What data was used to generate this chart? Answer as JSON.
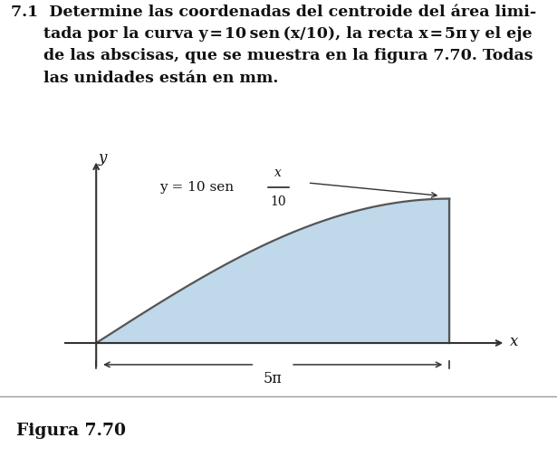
{
  "figura_label": "Figura 7.70",
  "x_axis_label": "x",
  "y_axis_label": "y",
  "x_limit_label": "5π",
  "x_max": 15.707963267948966,
  "fill_color": "#b8d4e8",
  "fill_alpha": 0.9,
  "curve_color": "#555555",
  "axes_color": "#333333",
  "bg_color": "#ffffff",
  "plot_bg": "#f5f5f5",
  "text_color": "#111111",
  "figura_bg": "#d8d8d8",
  "title_fontsize": 12.5,
  "label_fontsize": 12,
  "fig_width": 6.15,
  "fig_height": 5.05,
  "title_line1": "7.1  Determine las coordenadas del centroide del área limi-",
  "title_line2": "      tada por la curva y = 10 sen (x/10), la recta x = 5π y el eje",
  "title_line3": "      de las abscisas, que se muestra en la figura 7.70. Todas",
  "title_line4": "      las unidades están en mm."
}
